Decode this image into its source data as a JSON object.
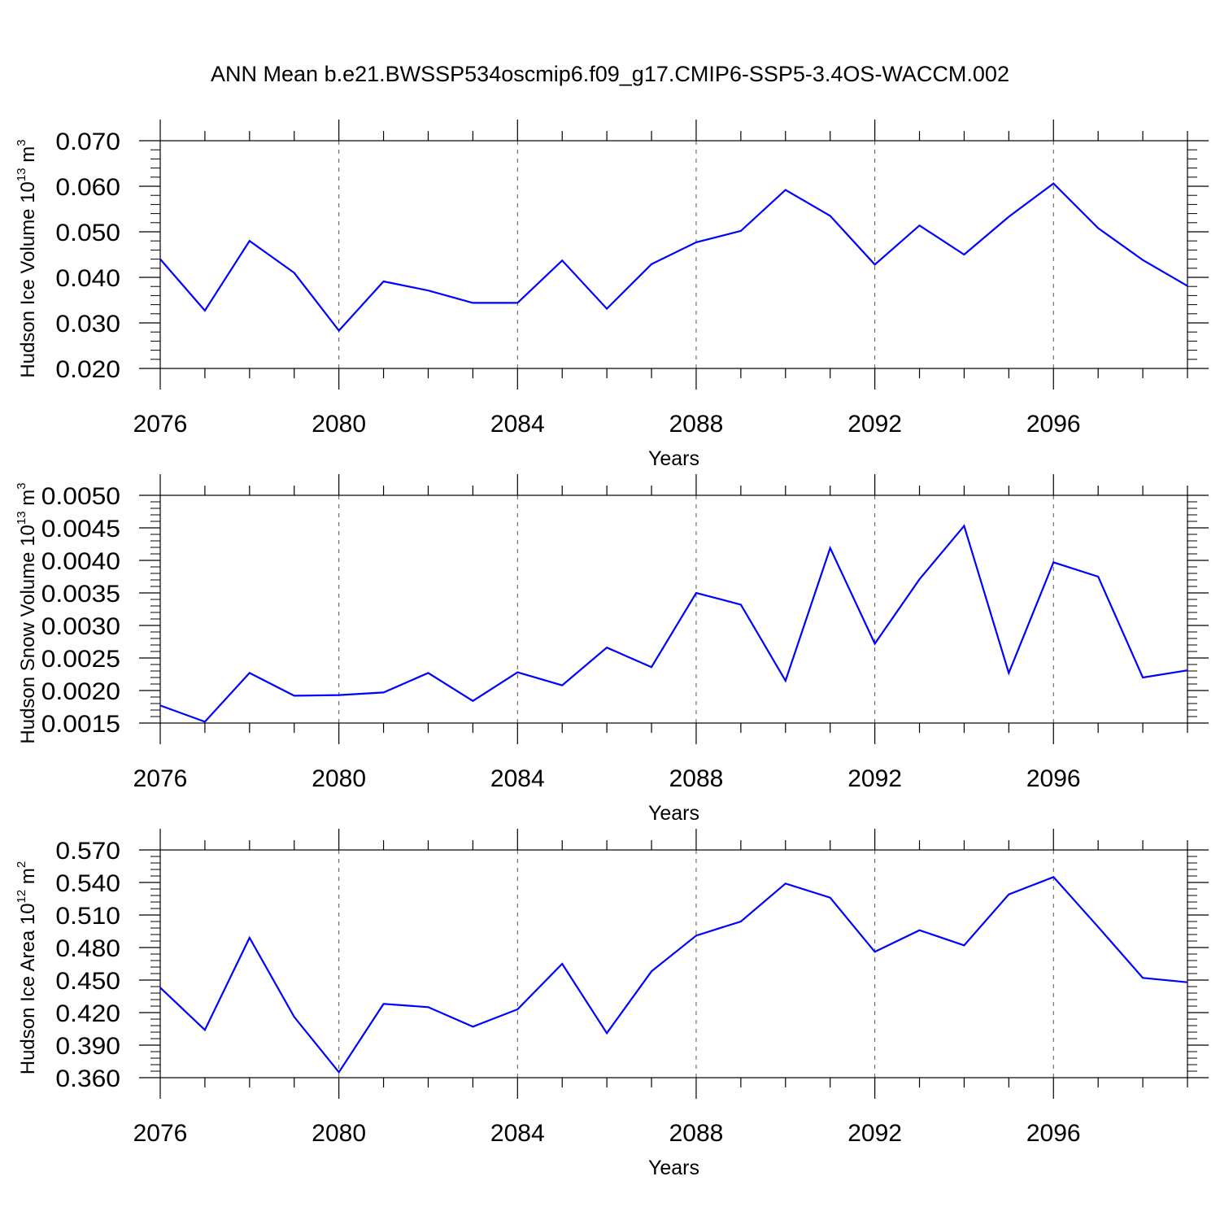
{
  "title": "ANN Mean b.e21.BWSSP534oscmip6.f09_g17.CMIP6-SSP5-3.4OS-WACCM.002",
  "colors": {
    "series": "#0000ff",
    "axis": "#000000",
    "grid": "#555555"
  },
  "chart_data": [
    {
      "type": "line",
      "ylabel_main": "Hudson Ice Volume 10",
      "ylabel_exp": "13",
      "ylabel_unit": " m",
      "ylabel_unit_exp": "3",
      "xlabel": "Years",
      "xlim": [
        2076,
        2099
      ],
      "ylim": [
        0.02,
        0.07
      ],
      "yticks": [
        0.02,
        0.03,
        0.04,
        0.05,
        0.06,
        0.07
      ],
      "ytick_labels": [
        "0.020",
        "0.030",
        "0.040",
        "0.050",
        "0.060",
        "0.070"
      ],
      "xticks": [
        2076,
        2080,
        2084,
        2088,
        2092,
        2096
      ],
      "xtick_labels": [
        "2076",
        "2080",
        "2084",
        "2088",
        "2092",
        "2096"
      ],
      "grid": "vertical-dashed-at-major-x-ticks",
      "x": [
        2076,
        2077,
        2078,
        2079,
        2080,
        2081,
        2082,
        2083,
        2084,
        2085,
        2086,
        2087,
        2088,
        2089,
        2090,
        2091,
        2092,
        2093,
        2094,
        2095,
        2096,
        2097,
        2098,
        2099
      ],
      "values": [
        0.044,
        0.0327,
        0.048,
        0.041,
        0.0283,
        0.0391,
        0.0371,
        0.0344,
        0.0344,
        0.0437,
        0.0331,
        0.0429,
        0.0477,
        0.0502,
        0.0592,
        0.0535,
        0.0428,
        0.0514,
        0.045,
        0.0533,
        0.0606,
        0.0508,
        0.0438,
        0.0381
      ]
    },
    {
      "type": "line",
      "ylabel_main": "Hudson Snow Volume 10",
      "ylabel_exp": "13",
      "ylabel_unit": " m",
      "ylabel_unit_exp": "3",
      "xlabel": "Years",
      "xlim": [
        2076,
        2099
      ],
      "ylim": [
        0.0015,
        0.005
      ],
      "yticks": [
        0.0015,
        0.002,
        0.0025,
        0.003,
        0.0035,
        0.004,
        0.0045,
        0.005
      ],
      "ytick_labels": [
        "0.0015",
        "0.0020",
        "0.0025",
        "0.0030",
        "0.0035",
        "0.0040",
        "0.0045",
        "0.0050"
      ],
      "xticks": [
        2076,
        2080,
        2084,
        2088,
        2092,
        2096
      ],
      "xtick_labels": [
        "2076",
        "2080",
        "2084",
        "2088",
        "2092",
        "2096"
      ],
      "grid": "vertical-dashed-at-major-x-ticks",
      "x": [
        2076,
        2077,
        2078,
        2079,
        2080,
        2081,
        2082,
        2083,
        2084,
        2085,
        2086,
        2087,
        2088,
        2089,
        2090,
        2091,
        2092,
        2093,
        2094,
        2095,
        2096,
        2097,
        2098,
        2099
      ],
      "values": [
        0.00177,
        0.00152,
        0.00227,
        0.00192,
        0.00193,
        0.00197,
        0.00227,
        0.00184,
        0.00228,
        0.00208,
        0.00266,
        0.00236,
        0.0035,
        0.00332,
        0.00215,
        0.00419,
        0.00272,
        0.00371,
        0.00453,
        0.00227,
        0.00397,
        0.00375,
        0.0022,
        0.00231
      ]
    },
    {
      "type": "line",
      "ylabel_main": "Hudson Ice Area 10",
      "ylabel_exp": "12",
      "ylabel_unit": " m",
      "ylabel_unit_exp": "2",
      "xlabel": "Years",
      "xlim": [
        2076,
        2099
      ],
      "ylim": [
        0.36,
        0.57
      ],
      "yticks": [
        0.36,
        0.39,
        0.42,
        0.45,
        0.48,
        0.51,
        0.54,
        0.57
      ],
      "ytick_labels": [
        "0.360",
        "0.390",
        "0.420",
        "0.450",
        "0.480",
        "0.510",
        "0.540",
        "0.570"
      ],
      "xticks": [
        2076,
        2080,
        2084,
        2088,
        2092,
        2096
      ],
      "xtick_labels": [
        "2076",
        "2080",
        "2084",
        "2088",
        "2092",
        "2096"
      ],
      "grid": "vertical-dashed-at-major-x-ticks",
      "x": [
        2076,
        2077,
        2078,
        2079,
        2080,
        2081,
        2082,
        2083,
        2084,
        2085,
        2086,
        2087,
        2088,
        2089,
        2090,
        2091,
        2092,
        2093,
        2094,
        2095,
        2096,
        2097,
        2098,
        2099
      ],
      "values": [
        0.443,
        0.404,
        0.489,
        0.416,
        0.365,
        0.428,
        0.425,
        0.407,
        0.423,
        0.465,
        0.401,
        0.458,
        0.491,
        0.504,
        0.539,
        0.526,
        0.476,
        0.496,
        0.482,
        0.529,
        0.545,
        0.499,
        0.452,
        0.448
      ]
    }
  ]
}
